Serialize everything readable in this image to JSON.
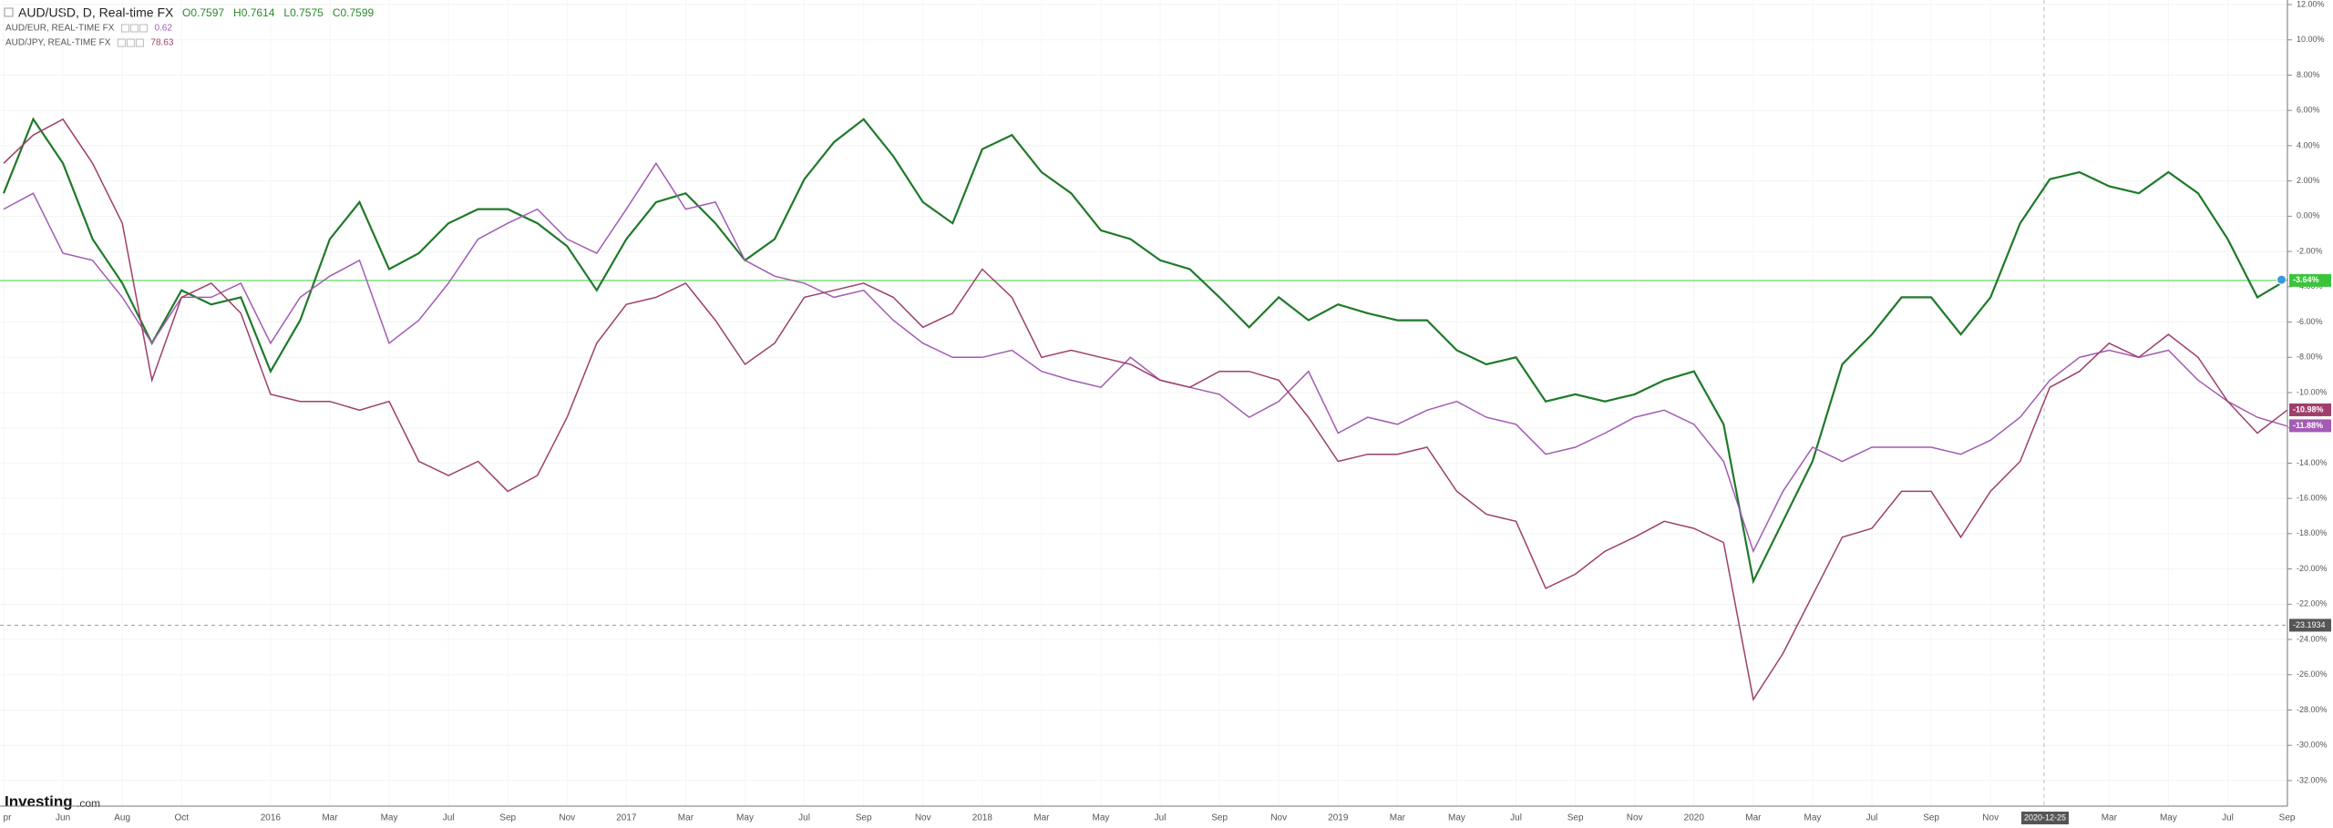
{
  "chart_data": {
    "type": "line",
    "title": "AUD/USD, D, Real-time FX",
    "ohlc": [
      "O0.7597",
      "H0.7614",
      "L0.7575",
      "C0.7599"
    ],
    "logo": {
      "brand": "Investing",
      "suffix": ".com"
    },
    "categories": [
      "pr",
      null,
      "Jun",
      null,
      "Aug",
      null,
      "Oct",
      null,
      null,
      "2016",
      null,
      "Mar",
      null,
      "May",
      null,
      "Jul",
      null,
      "Sep",
      null,
      "Nov",
      null,
      "2017",
      null,
      "Mar",
      null,
      "May",
      null,
      "Jul",
      null,
      "Sep",
      null,
      "Nov",
      null,
      "2018",
      null,
      "Mar",
      null,
      "May",
      null,
      "Jul",
      null,
      "Sep",
      null,
      "Nov",
      null,
      "2019",
      null,
      "Mar",
      null,
      "May",
      null,
      "Jul",
      null,
      "Sep",
      null,
      "Nov",
      null,
      "2020",
      null,
      "Mar",
      null,
      "May",
      null,
      "Jul",
      null,
      "Sep",
      null,
      "Nov",
      null,
      null,
      null,
      "Mar",
      null,
      "May",
      null,
      "Jul",
      null,
      "Sep"
    ],
    "series": [
      {
        "name": "AUD/USD",
        "color": "#1f7a2a",
        "price_line_color": "#7fe07f",
        "end_label": {
          "value": -3.64,
          "label": "-3.64%"
        },
        "values": [
          1.3,
          5.5,
          3,
          -1.3,
          -3.8,
          -7.2,
          -4.2,
          -5,
          -4.6,
          -8.8,
          -5.9,
          -1.3,
          0.8,
          -3,
          -2.1,
          -0.4,
          0.4,
          0.4,
          -0.4,
          -1.7,
          -4.2,
          -1.3,
          0.8,
          1.3,
          -0.4,
          -2.5,
          -1.3,
          2.1,
          4.2,
          5.5,
          3.4,
          0.8,
          -0.4,
          3.8,
          4.6,
          2.5,
          1.3,
          -0.8,
          -1.3,
          -2.5,
          -3,
          -4.6,
          -6.3,
          -4.6,
          -5.9,
          -5,
          -5.5,
          -5.9,
          -5.9,
          -7.6,
          -8.4,
          -8,
          -10.5,
          -10.1,
          -10.5,
          -10.1,
          -9.3,
          -8.8,
          -11.8,
          -20.7,
          -17.3,
          -13.9,
          -8.4,
          -6.7,
          -4.6,
          -4.6,
          -6.7,
          -4.6,
          -0.4,
          2.1,
          2.5,
          1.7,
          1.3,
          2.5,
          1.3,
          -1.3,
          -4.6,
          -3.6
        ]
      },
      {
        "name": "AUD/EUR, REAL-TIME FX",
        "color": "#a35bb5",
        "last": "0.62",
        "end_label": {
          "value": -11.88,
          "label": "-11.88%"
        },
        "values": [
          0.4,
          1.3,
          -2.1,
          -2.5,
          -4.6,
          -7.2,
          -4.6,
          -4.6,
          -3.8,
          -7.2,
          -4.6,
          -3.4,
          -2.5,
          -7.2,
          -5.9,
          -3.8,
          -1.3,
          -0.4,
          0.4,
          -1.3,
          -2.1,
          0.4,
          3,
          0.4,
          0.8,
          -2.5,
          -3.4,
          -3.8,
          -4.6,
          -4.2,
          -5.9,
          -7.2,
          -8,
          -8,
          -7.6,
          -8.8,
          -9.3,
          -9.7,
          -8,
          -9.3,
          -9.7,
          -10.1,
          -11.4,
          -10.5,
          -8.8,
          -12.3,
          -11.4,
          -11.8,
          -11,
          -10.5,
          -11.4,
          -11.8,
          -13.5,
          -13.1,
          -12.3,
          -11.4,
          -11,
          -11.8,
          -13.9,
          -19,
          -15.6,
          -13.1,
          -13.9,
          -13.1,
          -13.1,
          -13.1,
          -13.5,
          -12.7,
          -11.4,
          -9.3,
          -8,
          -7.6,
          -8,
          -7.6,
          -9.3,
          -10.5,
          -11.4,
          -11.9
        ]
      },
      {
        "name": "AUD/JPY, REAL-TIME FX",
        "color": "#9e3f6c",
        "last": "78.63",
        "end_label": {
          "value": -10.98,
          "label": "-10.98%"
        },
        "values": [
          3,
          4.6,
          5.5,
          3,
          -0.4,
          -9.3,
          -4.6,
          -3.8,
          -5.5,
          -10.1,
          -10.5,
          -10.5,
          -11,
          -10.5,
          -13.9,
          -14.7,
          -13.9,
          -15.6,
          -14.7,
          -11.4,
          -7.2,
          -5,
          -4.6,
          -3.8,
          -5.9,
          -8.4,
          -7.2,
          -4.6,
          -4.2,
          -3.8,
          -4.6,
          -6.3,
          -5.5,
          -3,
          -4.6,
          -8,
          -7.6,
          -8,
          -8.4,
          -9.3,
          -9.7,
          -8.8,
          -8.8,
          -9.3,
          -11.4,
          -13.9,
          -13.5,
          -13.5,
          -13.1,
          -15.6,
          -16.9,
          -17.3,
          -21.1,
          -20.3,
          -19,
          -18.2,
          -17.3,
          -17.7,
          -18.5,
          -27.4,
          -24.8,
          -21.5,
          -18.2,
          -17.7,
          -15.6,
          -15.6,
          -18.2,
          -15.6,
          -13.9,
          -9.7,
          -8.8,
          -7.2,
          -8,
          -6.7,
          -8,
          -10.5,
          -12.3,
          -11
        ]
      }
    ],
    "crosshair": {
      "date": "2020-12-25",
      "value": -23.1934
    },
    "ylim": [
      -33.45,
      12.26
    ],
    "yticks": [
      {
        "value": 12,
        "label": "12.00%"
      },
      {
        "value": 10,
        "label": "10.00%"
      },
      {
        "value": 8,
        "label": "8.00%"
      },
      {
        "value": 6,
        "label": "6.00%"
      },
      {
        "value": 4,
        "label": "4.00%"
      },
      {
        "value": 2,
        "label": "2.00%"
      },
      {
        "value": 0,
        "label": "0.00%"
      },
      {
        "value": -2,
        "label": "-2.00%"
      },
      {
        "value": -4,
        "label": "-4.00%"
      },
      {
        "value": -6,
        "label": "-6.00%"
      },
      {
        "value": -8,
        "label": "-8.00%"
      },
      {
        "value": -10,
        "label": "-10.00%"
      },
      {
        "value": -12,
        "label": "-12.00%"
      },
      {
        "value": -14,
        "label": "-14.00%"
      },
      {
        "value": -16,
        "label": "-16.00%"
      },
      {
        "value": -18,
        "label": "-18.00%"
      },
      {
        "value": -20,
        "label": "-20.00%"
      },
      {
        "value": -22,
        "label": "-22.00%"
      },
      {
        "value": -24,
        "label": "-24.00%"
      },
      {
        "value": -26,
        "label": "-26.00%"
      },
      {
        "value": -28,
        "label": "-28.00%"
      },
      {
        "value": -30,
        "label": "-30.00%"
      },
      {
        "value": -32,
        "label": "-32.00%"
      }
    ],
    "grid": true
  }
}
